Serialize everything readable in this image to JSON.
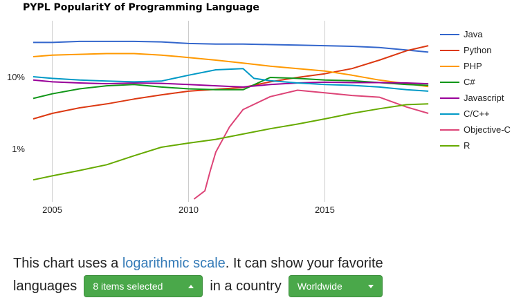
{
  "chart_data": {
    "type": "line",
    "title": "PYPL PopularitY of Programming Language",
    "xlabel": "",
    "ylabel": "",
    "y_scale": "log",
    "xlim": [
      2004.3,
      2018.9
    ],
    "ylim": [
      0.2,
      60
    ],
    "x_ticks": [
      2005,
      2010,
      2015
    ],
    "x_tick_labels": [
      "2005",
      "2010",
      "2015"
    ],
    "y_ticks": [
      1,
      10
    ],
    "y_tick_labels": [
      "1%",
      "10%"
    ],
    "grid": "vertical",
    "legend_position": "right",
    "series": [
      {
        "name": "Java",
        "color": "#3366cc",
        "x": [
          2004.3,
          2005,
          2006,
          2007,
          2008,
          2009,
          2010,
          2011,
          2012,
          2013,
          2014,
          2015,
          2016,
          2017,
          2018,
          2018.8
        ],
        "y": [
          30,
          30,
          31,
          31,
          31,
          30.5,
          29,
          28.5,
          28.5,
          28,
          27.5,
          27,
          26.5,
          25.5,
          23.5,
          22
        ]
      },
      {
        "name": "Python",
        "color": "#dc3912",
        "x": [
          2004.3,
          2005,
          2006,
          2007,
          2008,
          2009,
          2010,
          2011,
          2012,
          2013,
          2014,
          2015,
          2016,
          2017,
          2018,
          2018.8
        ],
        "y": [
          2.6,
          3.1,
          3.7,
          4.2,
          4.9,
          5.6,
          6.3,
          6.7,
          7.1,
          8.5,
          9.8,
          11.0,
          13.0,
          17.0,
          23.0,
          27.0
        ]
      },
      {
        "name": "PHP",
        "color": "#ff9900",
        "x": [
          2004.3,
          2005,
          2006,
          2007,
          2008,
          2009,
          2010,
          2011,
          2012,
          2013,
          2014,
          2015,
          2016,
          2017,
          2018,
          2018.8
        ],
        "y": [
          19,
          20,
          20.5,
          21,
          21,
          20,
          18.5,
          17,
          15.5,
          14,
          13,
          12,
          10.5,
          9,
          8,
          7.3
        ]
      },
      {
        "name": "C#",
        "color": "#109618",
        "x": [
          2004.3,
          2005,
          2006,
          2007,
          2008,
          2009,
          2010,
          2011,
          2012,
          2013,
          2014,
          2015,
          2016,
          2017,
          2018,
          2018.8
        ],
        "y": [
          5.0,
          5.8,
          6.8,
          7.5,
          7.8,
          7.2,
          6.8,
          6.6,
          6.6,
          9.8,
          9.5,
          9.0,
          8.8,
          8.3,
          7.8,
          7.6
        ]
      },
      {
        "name": "Javascript",
        "color": "#990099",
        "x": [
          2004.3,
          2005,
          2006,
          2007,
          2008,
          2009,
          2010,
          2011,
          2012,
          2013,
          2014,
          2015,
          2016,
          2017,
          2018,
          2018.8
        ],
        "y": [
          9.0,
          8.5,
          8.2,
          8.0,
          8.2,
          8.1,
          7.8,
          7.5,
          7.2,
          7.8,
          8.2,
          8.4,
          8.3,
          8.3,
          8.2,
          8.0
        ]
      },
      {
        "name": "C/C++",
        "color": "#0099c6",
        "x": [
          2004.3,
          2005,
          2006,
          2007,
          2008,
          2009,
          2010,
          2011,
          2012,
          2012.4,
          2013,
          2014,
          2015,
          2016,
          2017,
          2018,
          2018.8
        ],
        "y": [
          10.0,
          9.5,
          9.0,
          8.7,
          8.5,
          8.7,
          10.5,
          12.5,
          13.0,
          9.5,
          8.8,
          8.2,
          7.8,
          7.6,
          7.2,
          6.6,
          6.3
        ]
      },
      {
        "name": "Objective-C",
        "color": "#dd4477",
        "x": [
          2010.2,
          2010.6,
          2010.8,
          2011.0,
          2011.5,
          2012,
          2013,
          2014,
          2015,
          2016,
          2017,
          2018,
          2018.8
        ],
        "y": [
          0.2,
          0.26,
          0.5,
          0.9,
          2.0,
          3.5,
          5.3,
          6.5,
          6.0,
          5.5,
          5.2,
          3.8,
          3.1
        ]
      },
      {
        "name": "R",
        "color": "#66aa00",
        "x": [
          2004.3,
          2005,
          2006,
          2007,
          2008,
          2009,
          2010,
          2011,
          2012,
          2013,
          2014,
          2015,
          2016,
          2017,
          2018,
          2018.8
        ],
        "y": [
          0.37,
          0.42,
          0.5,
          0.6,
          0.8,
          1.05,
          1.2,
          1.35,
          1.6,
          1.9,
          2.2,
          2.6,
          3.1,
          3.6,
          4.1,
          4.2
        ]
      }
    ]
  },
  "controls": {
    "line1_prefix": "This chart uses a ",
    "line1_link": "logarithmic scale",
    "line1_suffix": ". It can show your favorite",
    "line2_prefix": "languages",
    "lang_select_label": "8 items selected",
    "line2_middle": "in a country",
    "country_select_label": "Worldwide"
  }
}
